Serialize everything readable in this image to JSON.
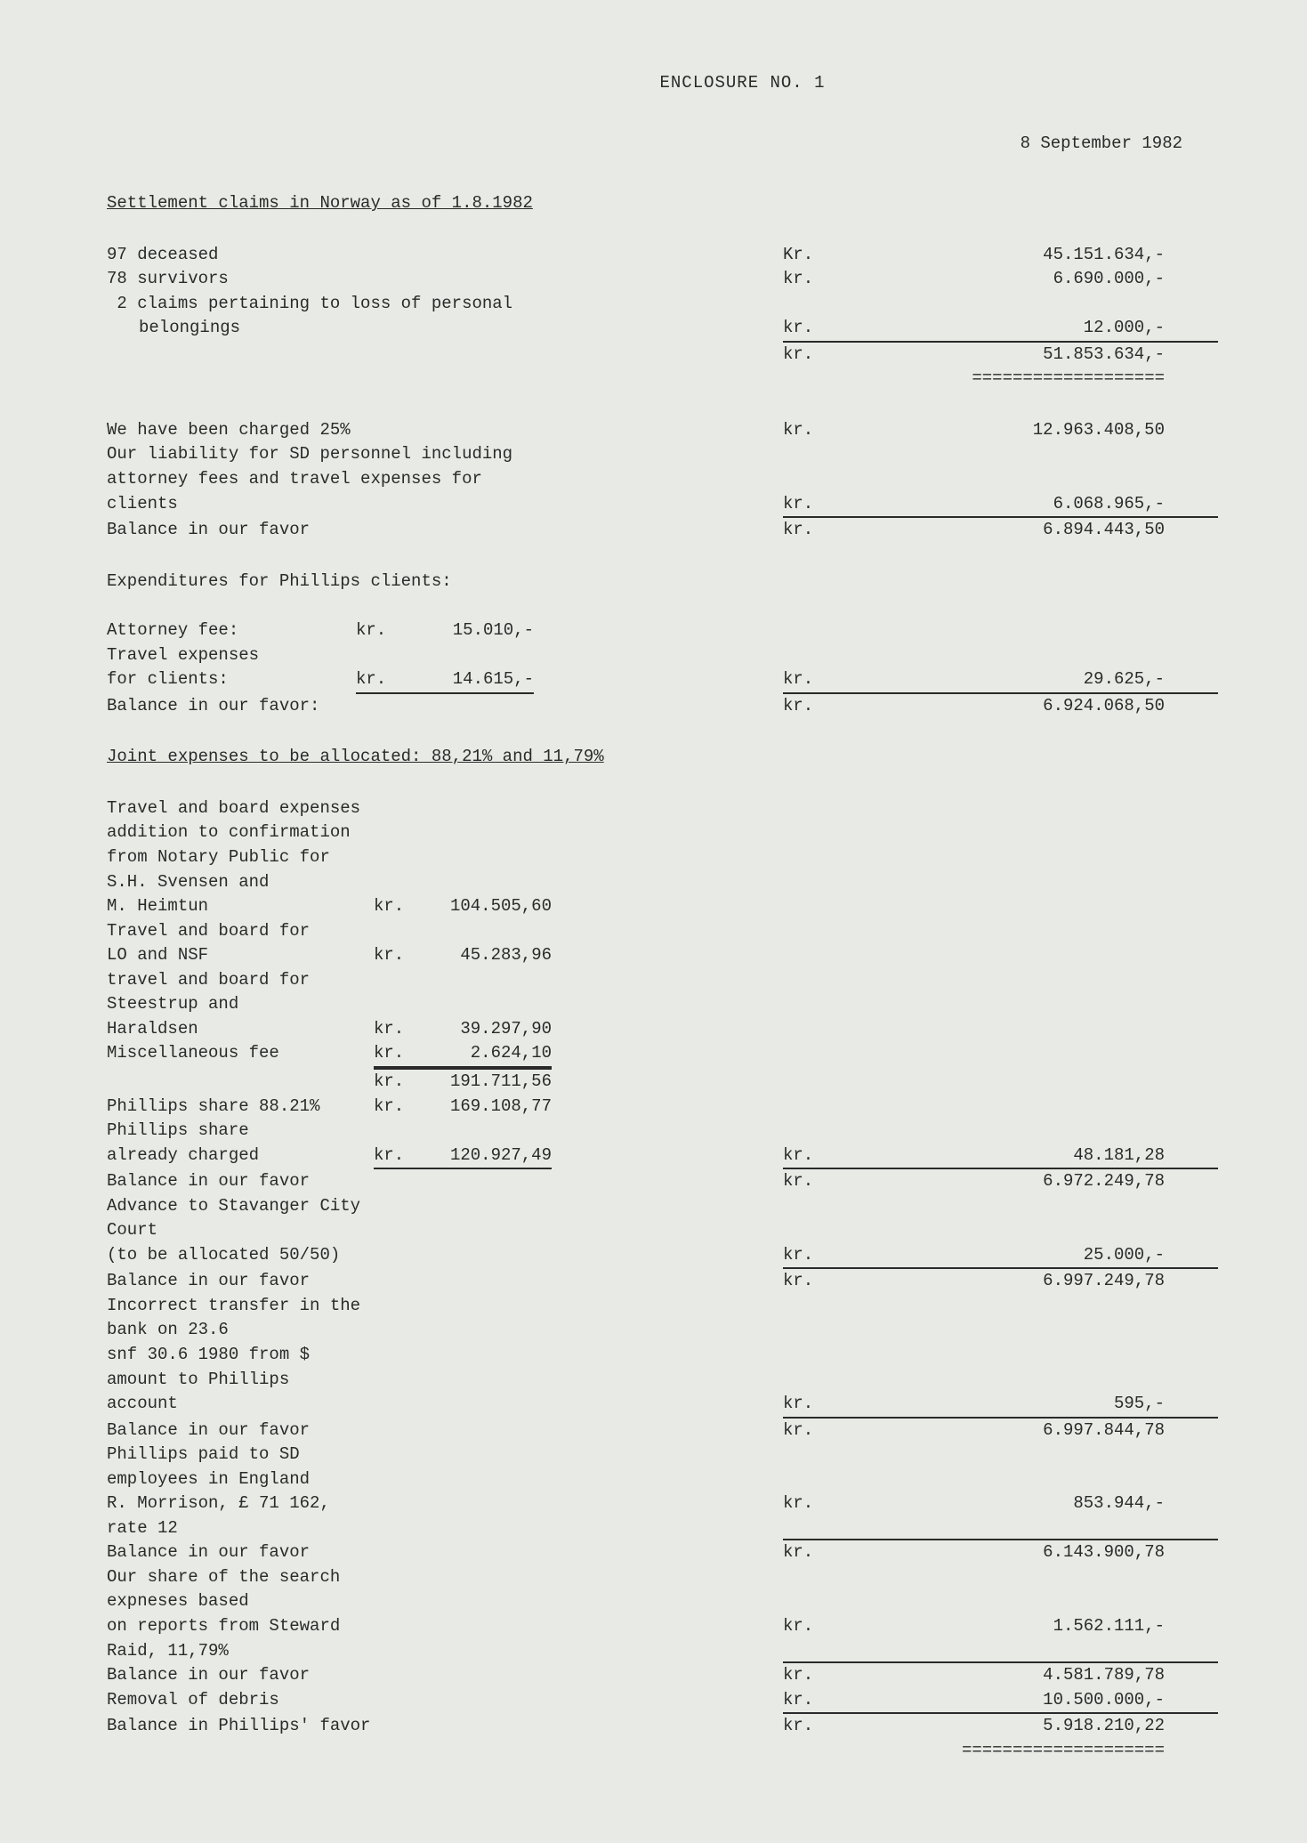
{
  "header": {
    "title": "ENCLOSURE NO. 1",
    "date": "8 September 1982"
  },
  "section1": {
    "title": "Settlement claims in Norway as of 1.8.1982",
    "rows": [
      {
        "label": "97 deceased",
        "cur": "Kr.",
        "val": "45.151.634,-"
      },
      {
        "label": "78 survivors",
        "cur": "kr.",
        "val": "6.690.000,-"
      },
      {
        "label": " 2 claims pertaining to loss of personal",
        "cur": "",
        "val": ""
      }
    ],
    "belongings": {
      "label": "belongings",
      "cur": "kr.",
      "val": "12.000,-"
    },
    "total": {
      "cur": "kr.",
      "val": "51.853.634,-"
    },
    "dbl": "==================="
  },
  "section2": {
    "rows": [
      {
        "label": "We have been charged 25%",
        "cur": "kr.",
        "val": "12.963.408,50"
      },
      {
        "label": "Our liability for SD personnel including",
        "cur": "",
        "val": ""
      },
      {
        "label": "attorney fees and travel expenses for",
        "cur": "",
        "val": ""
      },
      {
        "label": "clients",
        "cur": "kr.",
        "val": "6.068.965,-",
        "underline": true
      },
      {
        "label": "Balance in our favor",
        "cur": "kr.",
        "val": "6.894.443,50"
      }
    ]
  },
  "section3": {
    "title": "Expenditures for Phillips clients:",
    "rows": [
      {
        "label": "Attorney fee:",
        "mcur": "kr.",
        "mval": "15.010,-",
        "cur": "",
        "val": ""
      },
      {
        "label": "Travel expenses",
        "mcur": "",
        "mval": "",
        "cur": "",
        "val": ""
      },
      {
        "label": "for clients:",
        "mcur": "kr.",
        "mval": "14.615,-",
        "munder": true,
        "cur": "kr.",
        "val": "29.625,-",
        "underline": true
      },
      {
        "label": "Balance in our favor:",
        "mcur": "",
        "mval": "",
        "cur": "kr.",
        "val": "6.924.068,50"
      }
    ]
  },
  "section4": {
    "title": "Joint expenses to be allocated: 88,21% and 11,79%",
    "rows": [
      {
        "label": "Travel and board expenses"
      },
      {
        "label": "addition to confirmation"
      },
      {
        "label": "from Notary Public for"
      },
      {
        "label": "S.H. Svensen and"
      },
      {
        "label": "M. Heimtun",
        "mcur": "kr.",
        "mval": "104.505,60"
      },
      {
        "label": "Travel and board for"
      },
      {
        "label": "LO and NSF",
        "mcur": "kr.",
        "mval": "45.283,96"
      },
      {
        "label": "travel and board for"
      },
      {
        "label": "Steestrup and"
      },
      {
        "label": "Haraldsen",
        "mcur": "kr.",
        "mval": "39.297,90"
      },
      {
        "label": "Miscellaneous fee",
        "mcur": "kr.",
        "mval": "2.624,10",
        "munder": true
      },
      {
        "label": "",
        "mcur": "kr.",
        "mval": "191.711,56",
        "mover": true
      },
      {
        "label": "Phillips share 88.21%",
        "mcur": "kr.",
        "mval": "169.108,77"
      },
      {
        "label": "Phillips share"
      },
      {
        "label": "already charged",
        "mcur": "kr.",
        "mval": "120.927,49",
        "munder": true,
        "cur": "kr.",
        "val": "48.181,28",
        "underline": true
      },
      {
        "label": "Balance in our favor",
        "cur": "kr.",
        "val": "6.972.249,78"
      },
      {
        "label": "Advance to Stavanger City Court"
      },
      {
        "label": "(to be allocated 50/50)",
        "cur": "kr.",
        "val": "25.000,-",
        "underline": true
      },
      {
        "label": "Balance in our favor",
        "cur": "kr.",
        "val": "6.997.249,78"
      },
      {
        "label": "Incorrect transfer in the bank on 23.6"
      },
      {
        "label": "snf 30.6 1980 from $ amount to Phillips"
      },
      {
        "label": "account",
        "cur": "kr.",
        "val": "595,-",
        "underline": true
      },
      {
        "label": "Balance in our favor",
        "cur": "kr.",
        "val": "6.997.844,78"
      },
      {
        "label": "Phillips paid to SD employees in England"
      },
      {
        "label": "R. Morrison, £ 71 162, rate 12",
        "cur": "kr.",
        "val": "853.944,-",
        "underline": true
      },
      {
        "label": "Balance in our favor",
        "cur": "kr.",
        "val": "6.143.900,78"
      },
      {
        "label": "Our share of the search expneses based"
      },
      {
        "label": "on reports from Steward Raid, 11,79%",
        "cur": "kr.",
        "val": "1.562.111,-",
        "underline": true
      },
      {
        "label": "Balance in our favor",
        "cur": "kr.",
        "val": "4.581.789,78"
      },
      {
        "label": "Removal of debris",
        "cur": "kr.",
        "val": "10.500.000,-",
        "underline": true
      },
      {
        "label": "Balance in Phillips' favor",
        "cur": "kr.",
        "val": "5.918.210,22"
      }
    ],
    "dbl": "===================="
  }
}
